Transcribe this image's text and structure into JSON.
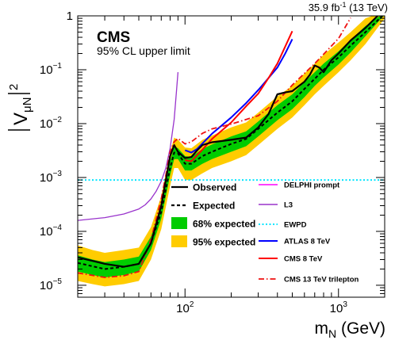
{
  "chart_data": {
    "type": "line",
    "luminosity_pre": "35.9 fb",
    "luminosity_sup": "-1",
    "luminosity_post": " (13 TeV)",
    "cms_label": "CMS",
    "subtitle": "95% CL upper limit",
    "ylabel": "|VμN|²",
    "ylabel_main": "V",
    "ylabel_sub": "μN",
    "ylabel_sup": "2",
    "xlabel_main": "m",
    "xlabel_sub": "N",
    "xlabel_unit": " (GeV)",
    "x_scale": "log",
    "y_scale": "log",
    "xlim": [
      20,
      2000
    ],
    "ylim": [
      6e-06,
      1
    ],
    "x_ticks": [
      {
        "v": 100,
        "base": "10",
        "exp": "2"
      },
      {
        "v": 1000,
        "base": "10",
        "exp": "3"
      }
    ],
    "y_ticks": [
      {
        "v": 1e-05,
        "base": "10",
        "exp": "−5"
      },
      {
        "v": 0.0001,
        "base": "10",
        "exp": "−4"
      },
      {
        "v": 0.001,
        "base": "10",
        "exp": "−3"
      },
      {
        "v": 0.01,
        "base": "10",
        "exp": "−2"
      },
      {
        "v": 0.1,
        "base": "10",
        "exp": "−1"
      },
      {
        "v": 1,
        "base": "1",
        "exp": ""
      }
    ],
    "bands": [
      {
        "name": "95% expected",
        "color": "#ffcc00",
        "x": [
          20,
          25,
          30,
          40,
          50,
          60,
          70,
          80,
          85,
          90,
          100,
          110,
          130,
          150,
          200,
          250,
          300,
          400,
          500,
          600,
          700,
          800,
          1000,
          1200,
          1500,
          2000
        ],
        "lower": [
          1.2e-05,
          1.05e-05,
          9.5e-06,
          1.05e-05,
          1.2e-05,
          3e-05,
          0.00011,
          0.0007,
          0.0015,
          0.0015,
          0.0009,
          0.0009,
          0.0012,
          0.0015,
          0.002,
          0.0026,
          0.004,
          0.008,
          0.013,
          0.022,
          0.035,
          0.05,
          0.09,
          0.15,
          0.3,
          0.9
        ],
        "upper": [
          5.5e-05,
          4.5e-05,
          4e-05,
          4.5e-05,
          5e-05,
          0.00012,
          0.00045,
          0.003,
          0.0055,
          0.005,
          0.0036,
          0.0035,
          0.005,
          0.006,
          0.0085,
          0.0105,
          0.016,
          0.032,
          0.05,
          0.085,
          0.13,
          0.19,
          0.32,
          0.5,
          0.9,
          1.2
        ]
      },
      {
        "name": "68% expected",
        "color": "#00cc00",
        "x": [
          20,
          25,
          30,
          40,
          50,
          60,
          70,
          80,
          85,
          90,
          100,
          110,
          130,
          150,
          200,
          250,
          300,
          400,
          500,
          600,
          700,
          800,
          1000,
          1200,
          1500,
          2000
        ],
        "lower": [
          1.8e-05,
          1.55e-05,
          1.4e-05,
          1.55e-05,
          1.8e-05,
          4.5e-05,
          0.00017,
          0.0011,
          0.0022,
          0.0022,
          0.00135,
          0.00135,
          0.0018,
          0.0022,
          0.003,
          0.0038,
          0.0058,
          0.0115,
          0.0185,
          0.031,
          0.05,
          0.072,
          0.125,
          0.21,
          0.42,
          1.05
        ],
        "upper": [
          3.6e-05,
          3e-05,
          2.7e-05,
          3e-05,
          3.4e-05,
          8e-05,
          0.0003,
          0.002,
          0.0038,
          0.0035,
          0.0025,
          0.0024,
          0.0034,
          0.0041,
          0.0058,
          0.0072,
          0.011,
          0.022,
          0.035,
          0.059,
          0.09,
          0.13,
          0.22,
          0.36,
          0.65,
          1.15
        ]
      }
    ],
    "series": [
      {
        "name": "Observed",
        "color": "#000000",
        "style": "solid",
        "width": 2.2,
        "x": [
          20,
          30,
          40,
          50,
          60,
          70,
          80,
          85,
          90,
          100,
          110,
          120,
          130,
          150,
          200,
          250,
          300,
          350,
          400,
          450,
          500,
          600,
          650,
          700,
          750,
          800,
          900,
          1000,
          1200,
          1500,
          1800
        ],
        "y": [
          3.3e-05,
          2.5e-05,
          2.2e-05,
          2.5e-05,
          6e-05,
          0.0003,
          0.0025,
          0.004,
          0.003,
          0.0023,
          0.0024,
          0.0032,
          0.004,
          0.0045,
          0.005,
          0.0055,
          0.0085,
          0.015,
          0.035,
          0.038,
          0.04,
          0.06,
          0.08,
          0.12,
          0.11,
          0.09,
          0.15,
          0.2,
          0.35,
          0.6,
          1.0
        ]
      },
      {
        "name": "Expected",
        "color": "#000000",
        "style": "dashed",
        "width": 2,
        "x": [
          20,
          30,
          40,
          50,
          60,
          70,
          80,
          85,
          90,
          100,
          110,
          130,
          150,
          200,
          250,
          300,
          400,
          500,
          600,
          700,
          800,
          1000,
          1200,
          1500,
          2000
        ],
        "y": [
          2.6e-05,
          2e-05,
          2.2e-05,
          2.5e-05,
          6e-05,
          0.00023,
          0.0015,
          0.0029,
          0.0028,
          0.0018,
          0.0018,
          0.0025,
          0.003,
          0.0042,
          0.0052,
          0.008,
          0.016,
          0.026,
          0.044,
          0.068,
          0.1,
          0.17,
          0.28,
          0.5,
          1.1
        ]
      },
      {
        "name": "DELPHI prompt",
        "color": "#ff00ff",
        "style": "solid",
        "width": 1.3,
        "x": [],
        "y": []
      },
      {
        "name": "L3",
        "color": "#9933cc",
        "style": "solid",
        "width": 1.3,
        "x": [
          20,
          30,
          40,
          50,
          55,
          60,
          65,
          70,
          75,
          80,
          85,
          88,
          90
        ],
        "y": [
          0.00016,
          0.00018,
          0.00021,
          0.00026,
          0.00031,
          0.0004,
          0.00056,
          0.00085,
          0.0015,
          0.0035,
          0.012,
          0.04,
          0.09
        ]
      },
      {
        "name": "EWPD",
        "color": "#00e5ff",
        "style": "dotted",
        "width": 2,
        "x": [
          20,
          2000
        ],
        "y": [
          0.0009,
          0.0009
        ]
      },
      {
        "name": "ATLAS 8 TeV",
        "color": "#0000ff",
        "style": "solid",
        "width": 2,
        "x": [
          100,
          110,
          120,
          130,
          150,
          200,
          250,
          300,
          350,
          400,
          450,
          500
        ],
        "y": [
          0.0032,
          0.0029,
          0.0034,
          0.0043,
          0.0065,
          0.013,
          0.024,
          0.042,
          0.07,
          0.11,
          0.2,
          0.37
        ]
      },
      {
        "name": "CMS 8 TeV",
        "color": "#ff0000",
        "style": "solid",
        "width": 2,
        "x": [
          100,
          110,
          120,
          130,
          150,
          200,
          250,
          300,
          350,
          400,
          450,
          500
        ],
        "y": [
          0.0021,
          0.002,
          0.0026,
          0.0033,
          0.0052,
          0.0105,
          0.021,
          0.036,
          0.07,
          0.13,
          0.27,
          0.52
        ]
      },
      {
        "name": "CMS 13 TeV trilepton",
        "color": "#ee1111",
        "style": "dashdot",
        "width": 1.8,
        "x": [
          20,
          30,
          40,
          50,
          60,
          70,
          75,
          80,
          85,
          90,
          100,
          110,
          130,
          150,
          200,
          300,
          400,
          500,
          700,
          1000,
          1200
        ],
        "y": [
          1.7e-05,
          1.4e-05,
          1.5e-05,
          1.8e-05,
          7e-05,
          0.0004,
          0.0011,
          0.003,
          0.0046,
          0.0053,
          0.0042,
          0.0046,
          0.0066,
          0.008,
          0.0098,
          0.014,
          0.026,
          0.052,
          0.13,
          0.38,
          0.92
        ]
      }
    ],
    "legend_left": [
      "Observed",
      "Expected",
      "68% expected",
      "95% expected"
    ],
    "legend_right": [
      "DELPHI prompt",
      "L3",
      "EWPD",
      "ATLAS 8 TeV",
      "CMS 8 TeV",
      "CMS 13 TeV trilepton"
    ],
    "legend_position": "bottom-right"
  }
}
